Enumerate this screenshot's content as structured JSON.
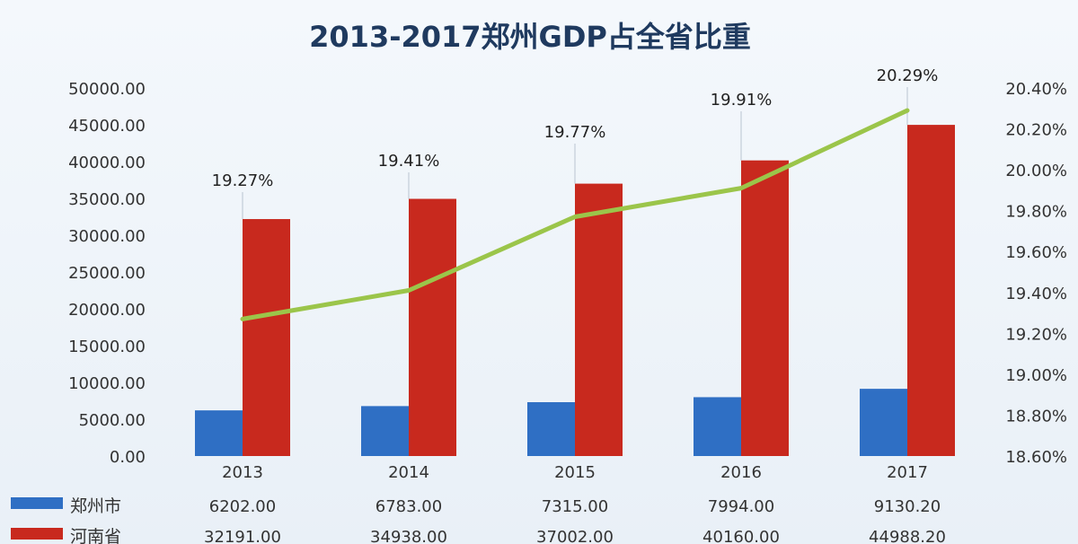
{
  "chart_data": {
    "type": "bar",
    "title": "2013-2017郑州GDP占全省比重",
    "categories": [
      "2013",
      "2014",
      "2015",
      "2016",
      "2017"
    ],
    "series": [
      {
        "name": "郑州市",
        "values": [
          6202.0,
          6783.0,
          7315.0,
          7994.0,
          9130.2
        ],
        "labels": [
          "6202.00",
          "6783.00",
          "7315.00",
          "7994.00",
          "9130.20"
        ],
        "color": "#2f6fc4",
        "axis": "left"
      },
      {
        "name": "河南省",
        "values": [
          32191.0,
          34938.0,
          37002.0,
          40160.0,
          44988.2
        ],
        "labels": [
          "32191.00",
          "34938.00",
          "37002.00",
          "40160.00",
          "44988.20"
        ],
        "color": "#c8291e",
        "axis": "left"
      }
    ],
    "line_series": {
      "values": [
        19.27,
        19.41,
        19.77,
        19.91,
        20.29
      ],
      "labels": [
        "19.27%",
        "19.41%",
        "19.77%",
        "19.91%",
        "20.29%"
      ],
      "color": "#9bc54a",
      "axis": "right"
    },
    "y_left": {
      "lim": [
        0,
        50000
      ],
      "ticks": [
        "0.00",
        "5000.00",
        "10000.00",
        "15000.00",
        "20000.00",
        "25000.00",
        "30000.00",
        "35000.00",
        "40000.00",
        "45000.00",
        "50000.00"
      ]
    },
    "y_right": {
      "lim": [
        18.6,
        20.4
      ],
      "ticks": [
        "18.60%",
        "18.80%",
        "19.00%",
        "19.20%",
        "19.40%",
        "19.60%",
        "19.80%",
        "20.00%",
        "20.20%",
        "20.40%"
      ]
    },
    "legend": "bottom-left",
    "data_table": true
  }
}
